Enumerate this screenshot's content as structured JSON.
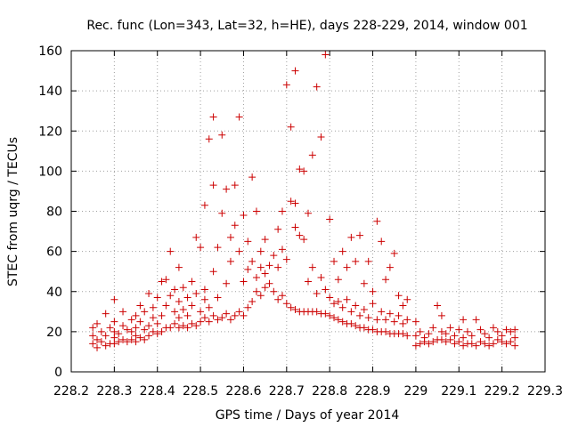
{
  "chart_data": {
    "type": "scatter",
    "title": "Rec. func (Lon=343, Lat=32, h=HE), days 228-229, 2014, window 001",
    "xlabel": "GPS time / Days of year 2014",
    "ylabel": "STEC from uqrg / TECUs",
    "xlim": [
      228.2,
      229.3
    ],
    "ylim": [
      0,
      160
    ],
    "xticks": [
      "228.2",
      "228.3",
      "228.4",
      "228.5",
      "228.6",
      "228.7",
      "228.8",
      "228.9",
      "229",
      "229.1",
      "229.2",
      "229.3"
    ],
    "yticks": [
      "0",
      "20",
      "40",
      "60",
      "80",
      "100",
      "120",
      "140",
      "160"
    ],
    "grid": true,
    "legend": "none",
    "marker": "plus",
    "color": "#cc0000",
    "series": [
      {
        "points": [
          [
            228.25,
            14
          ],
          [
            228.25,
            18
          ],
          [
            228.25,
            22
          ],
          [
            228.26,
            12
          ],
          [
            228.26,
            16
          ],
          [
            228.26,
            24
          ],
          [
            228.27,
            15
          ],
          [
            228.27,
            20
          ],
          [
            228.28,
            13
          ],
          [
            228.28,
            18
          ],
          [
            228.28,
            29
          ],
          [
            228.29,
            14
          ],
          [
            228.29,
            22
          ],
          [
            228.3,
            14
          ],
          [
            228.3,
            17
          ],
          [
            228.3,
            20
          ],
          [
            228.3,
            25
          ],
          [
            228.3,
            36
          ],
          [
            228.31,
            15
          ],
          [
            228.31,
            19
          ],
          [
            228.32,
            16
          ],
          [
            228.32,
            23
          ],
          [
            228.32,
            30
          ],
          [
            228.33,
            15
          ],
          [
            228.33,
            21
          ],
          [
            228.34,
            16
          ],
          [
            228.34,
            20
          ],
          [
            228.34,
            26
          ],
          [
            228.35,
            15
          ],
          [
            228.35,
            18
          ],
          [
            228.35,
            22
          ],
          [
            228.35,
            28
          ],
          [
            228.36,
            17
          ],
          [
            228.36,
            25
          ],
          [
            228.36,
            33
          ],
          [
            228.37,
            16
          ],
          [
            228.37,
            21
          ],
          [
            228.37,
            30
          ],
          [
            228.38,
            18
          ],
          [
            228.38,
            23
          ],
          [
            228.38,
            39
          ],
          [
            228.39,
            20
          ],
          [
            228.39,
            27
          ],
          [
            228.39,
            32
          ],
          [
            228.4,
            19
          ],
          [
            228.4,
            24
          ],
          [
            228.4,
            37
          ],
          [
            228.41,
            20
          ],
          [
            228.41,
            28
          ],
          [
            228.41,
            45
          ],
          [
            228.42,
            22
          ],
          [
            228.42,
            33
          ],
          [
            228.42,
            46
          ],
          [
            228.43,
            22
          ],
          [
            228.43,
            38
          ],
          [
            228.43,
            60
          ],
          [
            228.44,
            24
          ],
          [
            228.44,
            30
          ],
          [
            228.44,
            41
          ],
          [
            228.45,
            22
          ],
          [
            228.45,
            27
          ],
          [
            228.45,
            35
          ],
          [
            228.45,
            52
          ],
          [
            228.46,
            23
          ],
          [
            228.46,
            31
          ],
          [
            228.46,
            42
          ],
          [
            228.47,
            22
          ],
          [
            228.47,
            28
          ],
          [
            228.47,
            37
          ],
          [
            228.48,
            24
          ],
          [
            228.48,
            33
          ],
          [
            228.48,
            45
          ],
          [
            228.49,
            23
          ],
          [
            228.49,
            39
          ],
          [
            228.49,
            67
          ],
          [
            228.5,
            25
          ],
          [
            228.5,
            30
          ],
          [
            228.5,
            62
          ],
          [
            228.51,
            27
          ],
          [
            228.51,
            36
          ],
          [
            228.51,
            41
          ],
          [
            228.51,
            83
          ],
          [
            228.52,
            25
          ],
          [
            228.52,
            32
          ],
          [
            228.52,
            116
          ],
          [
            228.53,
            28
          ],
          [
            228.53,
            50
          ],
          [
            228.53,
            93
          ],
          [
            228.53,
            127
          ],
          [
            228.54,
            26
          ],
          [
            228.54,
            37
          ],
          [
            228.54,
            62
          ],
          [
            228.55,
            27
          ],
          [
            228.55,
            79
          ],
          [
            228.55,
            118
          ],
          [
            228.56,
            29
          ],
          [
            228.56,
            44
          ],
          [
            228.56,
            91
          ],
          [
            228.57,
            26
          ],
          [
            228.57,
            55
          ],
          [
            228.57,
            67
          ],
          [
            228.58,
            28
          ],
          [
            228.58,
            73
          ],
          [
            228.58,
            93
          ],
          [
            228.59,
            30
          ],
          [
            228.59,
            60
          ],
          [
            228.59,
            127
          ],
          [
            228.6,
            28
          ],
          [
            228.6,
            45
          ],
          [
            228.6,
            78
          ],
          [
            228.61,
            32
          ],
          [
            228.61,
            51
          ],
          [
            228.61,
            65
          ],
          [
            228.62,
            35
          ],
          [
            228.62,
            55
          ],
          [
            228.62,
            97
          ],
          [
            228.63,
            40
          ],
          [
            228.63,
            47
          ],
          [
            228.63,
            80
          ],
          [
            228.64,
            38
          ],
          [
            228.64,
            52
          ],
          [
            228.64,
            60
          ],
          [
            228.65,
            42
          ],
          [
            228.65,
            49
          ],
          [
            228.65,
            66
          ],
          [
            228.66,
            44
          ],
          [
            228.66,
            53
          ],
          [
            228.67,
            40
          ],
          [
            228.67,
            58
          ],
          [
            228.68,
            36
          ],
          [
            228.68,
            52
          ],
          [
            228.68,
            71
          ],
          [
            228.69,
            38
          ],
          [
            228.69,
            61
          ],
          [
            228.69,
            80
          ],
          [
            228.7,
            34
          ],
          [
            228.7,
            56
          ],
          [
            228.7,
            143
          ],
          [
            228.71,
            32
          ],
          [
            228.71,
            85
          ],
          [
            228.71,
            122
          ],
          [
            228.72,
            31
          ],
          [
            228.72,
            72
          ],
          [
            228.72,
            84
          ],
          [
            228.72,
            150
          ],
          [
            228.73,
            30
          ],
          [
            228.73,
            68
          ],
          [
            228.73,
            101
          ],
          [
            228.74,
            30
          ],
          [
            228.74,
            66
          ],
          [
            228.74,
            100
          ],
          [
            228.75,
            30
          ],
          [
            228.75,
            45
          ],
          [
            228.75,
            79
          ],
          [
            228.76,
            30
          ],
          [
            228.76,
            52
          ],
          [
            228.76,
            108
          ],
          [
            228.77,
            30
          ],
          [
            228.77,
            39
          ],
          [
            228.77,
            142
          ],
          [
            228.78,
            29
          ],
          [
            228.78,
            47
          ],
          [
            228.78,
            117
          ],
          [
            228.79,
            29
          ],
          [
            228.79,
            41
          ],
          [
            228.79,
            158
          ],
          [
            228.8,
            28
          ],
          [
            228.8,
            37
          ],
          [
            228.8,
            76
          ],
          [
            228.81,
            27
          ],
          [
            228.81,
            34
          ],
          [
            228.81,
            55
          ],
          [
            228.82,
            26
          ],
          [
            228.82,
            35
          ],
          [
            228.82,
            46
          ],
          [
            228.83,
            25
          ],
          [
            228.83,
            32
          ],
          [
            228.83,
            60
          ],
          [
            228.84,
            24
          ],
          [
            228.84,
            36
          ],
          [
            228.84,
            52
          ],
          [
            228.85,
            24
          ],
          [
            228.85,
            30
          ],
          [
            228.85,
            67
          ],
          [
            228.86,
            23
          ],
          [
            228.86,
            33
          ],
          [
            228.86,
            55
          ],
          [
            228.87,
            22
          ],
          [
            228.87,
            28
          ],
          [
            228.87,
            68
          ],
          [
            228.88,
            22
          ],
          [
            228.88,
            31
          ],
          [
            228.88,
            44
          ],
          [
            228.89,
            21
          ],
          [
            228.89,
            27
          ],
          [
            228.89,
            55
          ],
          [
            228.9,
            21
          ],
          [
            228.9,
            34
          ],
          [
            228.9,
            40
          ],
          [
            228.91,
            20
          ],
          [
            228.91,
            26
          ],
          [
            228.91,
            75
          ],
          [
            228.92,
            20
          ],
          [
            228.92,
            30
          ],
          [
            228.92,
            65
          ],
          [
            228.93,
            20
          ],
          [
            228.93,
            26
          ],
          [
            228.93,
            46
          ],
          [
            228.94,
            19
          ],
          [
            228.94,
            29
          ],
          [
            228.94,
            52
          ],
          [
            228.95,
            19
          ],
          [
            228.95,
            25
          ],
          [
            228.95,
            59
          ],
          [
            228.96,
            19
          ],
          [
            228.96,
            28
          ],
          [
            228.96,
            38
          ],
          [
            228.97,
            19
          ],
          [
            228.97,
            24
          ],
          [
            228.97,
            33
          ],
          [
            228.98,
            18
          ],
          [
            228.98,
            26
          ],
          [
            228.98,
            36
          ],
          [
            229.0,
            13
          ],
          [
            229.0,
            18
          ],
          [
            229.0,
            25
          ],
          [
            229.01,
            14
          ],
          [
            229.01,
            20
          ],
          [
            229.02,
            15
          ],
          [
            229.02,
            17
          ],
          [
            229.03,
            14
          ],
          [
            229.03,
            19
          ],
          [
            229.04,
            15
          ],
          [
            229.04,
            22
          ],
          [
            229.05,
            16
          ],
          [
            229.05,
            33
          ],
          [
            229.06,
            16
          ],
          [
            229.06,
            20
          ],
          [
            229.06,
            28
          ],
          [
            229.07,
            15
          ],
          [
            229.07,
            19
          ],
          [
            229.08,
            16
          ],
          [
            229.08,
            22
          ],
          [
            229.09,
            14
          ],
          [
            229.09,
            18
          ],
          [
            229.1,
            15
          ],
          [
            229.1,
            21
          ],
          [
            229.11,
            13
          ],
          [
            229.11,
            17
          ],
          [
            229.11,
            26
          ],
          [
            229.12,
            14
          ],
          [
            229.12,
            20
          ],
          [
            229.13,
            14
          ],
          [
            229.13,
            18
          ],
          [
            229.14,
            13
          ],
          [
            229.14,
            26
          ],
          [
            229.15,
            15
          ],
          [
            229.15,
            21
          ],
          [
            229.16,
            14
          ],
          [
            229.16,
            19
          ],
          [
            229.17,
            13
          ],
          [
            229.17,
            17
          ],
          [
            229.18,
            14
          ],
          [
            229.18,
            22
          ],
          [
            229.19,
            16
          ],
          [
            229.19,
            20
          ],
          [
            229.2,
            15
          ],
          [
            229.2,
            18
          ],
          [
            229.21,
            14
          ],
          [
            229.21,
            21
          ],
          [
            229.22,
            15
          ],
          [
            229.22,
            20
          ],
          [
            229.23,
            13
          ],
          [
            229.23,
            17
          ],
          [
            229.23,
            21
          ]
        ]
      }
    ]
  }
}
